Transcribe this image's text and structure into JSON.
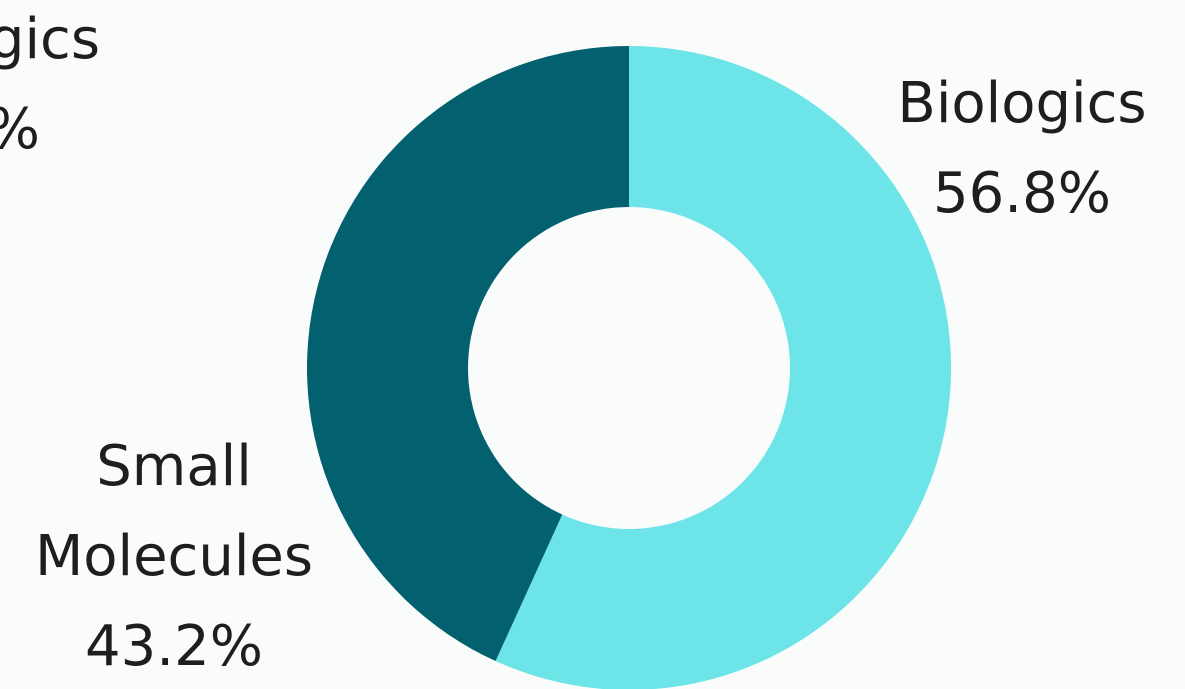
{
  "chart_data": {
    "type": "pie",
    "style": "donut",
    "slices": [
      {
        "label_lines": [
          "Biologics"
        ],
        "percent_label": "56.8%",
        "value": 56.8,
        "color": "#6ce4e8"
      },
      {
        "label_lines": [
          "Small",
          "Molecules"
        ],
        "percent_label": "43.2%",
        "value": 43.2,
        "color": "#03606f"
      }
    ],
    "clipped_fragment": {
      "label_lines": [
        "gics"
      ],
      "percent_label": "%"
    },
    "background": "#fafcfb",
    "legend": "none"
  }
}
